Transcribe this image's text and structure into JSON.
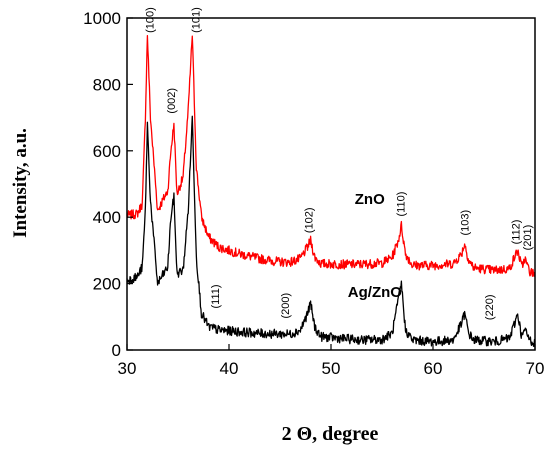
{
  "chart_data": {
    "type": "line",
    "xlabel": "2 Θ, degree",
    "ylabel": "Intensity, a.u.",
    "xlim": [
      30,
      70
    ],
    "ylim": [
      0,
      1000
    ],
    "xticks": [
      30,
      40,
      50,
      60,
      70
    ],
    "yticks": [
      0,
      200,
      400,
      600,
      800,
      1000
    ],
    "grid": false,
    "series_labels": [
      {
        "text": "ZnO",
        "x": 53.8,
        "y": 440
      },
      {
        "text": "Ag/ZnO",
        "x": 54.3,
        "y": 160
      }
    ],
    "series": [
      {
        "color": "#ff0000",
        "x": [
          30,
          31,
          31.5,
          31.8,
          32.0,
          32.3,
          33,
          34,
          34.3,
          34.6,
          34.9,
          35.5,
          36.0,
          36.4,
          36.8,
          37.3,
          38,
          39,
          41,
          43,
          45,
          46,
          47,
          47.7,
          48.0,
          48.4,
          49,
          51,
          53,
          55,
          56,
          56.6,
          56.9,
          57.3,
          58,
          60,
          62,
          62.8,
          63.1,
          63.5,
          64,
          66,
          67.5,
          68.0,
          68.3,
          68.7,
          69,
          69.5,
          70
        ],
        "y": [
          405,
          410,
          440,
          700,
          950,
          700,
          420,
          480,
          600,
          680,
          470,
          520,
          720,
          950,
          550,
          400,
          340,
          310,
          290,
          275,
          265,
          265,
          275,
          310,
          330,
          280,
          260,
          258,
          258,
          262,
          280,
          330,
          375,
          290,
          255,
          255,
          260,
          290,
          320,
          270,
          248,
          240,
          245,
          280,
          300,
          250,
          275,
          235,
          230
        ]
      },
      {
        "color": "#000000",
        "x": [
          30,
          31,
          31.5,
          31.8,
          32.0,
          32.3,
          33,
          34,
          34.3,
          34.6,
          34.9,
          35.5,
          36.0,
          36.4,
          36.8,
          37.3,
          38,
          39,
          41,
          43,
          45,
          46,
          47,
          47.7,
          48.0,
          48.4,
          49,
          51,
          53,
          55,
          56,
          56.6,
          56.9,
          57.3,
          58,
          60,
          62,
          62.8,
          63.1,
          63.5,
          64,
          66,
          67.5,
          68.0,
          68.3,
          68.7,
          69,
          69.5,
          70
        ],
        "y": [
          210,
          220,
          250,
          420,
          680,
          450,
          200,
          250,
          400,
          460,
          230,
          240,
          420,
          700,
          280,
          110,
          70,
          60,
          55,
          50,
          48,
          48,
          60,
          110,
          140,
          70,
          40,
          35,
          30,
          32,
          50,
          150,
          200,
          60,
          30,
          25,
          30,
          80,
          110,
          50,
          30,
          25,
          35,
          80,
          110,
          40,
          60,
          30,
          20
        ]
      }
    ],
    "annotations": [
      {
        "text": "(100)",
        "x": 32.6,
        "y": 955
      },
      {
        "text": "(101)",
        "x": 37.1,
        "y": 955
      },
      {
        "text": "(002)",
        "x": 34.7,
        "y": 712
      },
      {
        "text": "(102)",
        "x": 48.2,
        "y": 352
      },
      {
        "text": "(110)",
        "x": 57.2,
        "y": 402
      },
      {
        "text": "(103)",
        "x": 63.5,
        "y": 345
      },
      {
        "text": "(112)",
        "x": 68.5,
        "y": 318
      },
      {
        "text": "(201)",
        "x": 69.6,
        "y": 300
      },
      {
        "text": "(111)",
        "x": 39.0,
        "y": 125
      },
      {
        "text": "(200)",
        "x": 45.9,
        "y": 95
      },
      {
        "text": "(220)",
        "x": 65.9,
        "y": 90
      }
    ]
  }
}
